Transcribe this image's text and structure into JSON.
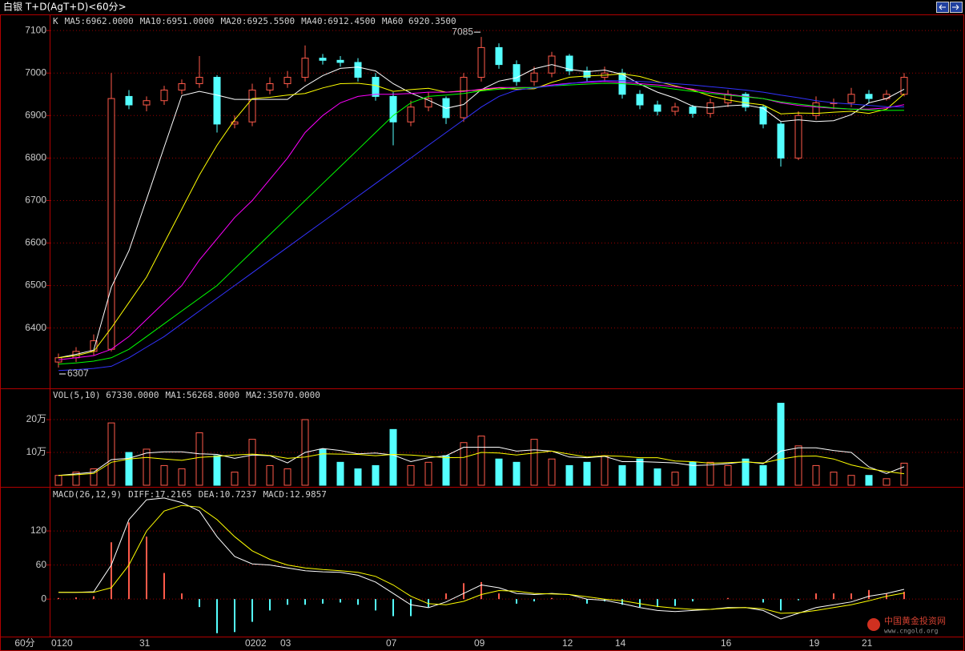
{
  "header": {
    "title": "白银 T+D(AgT+D)<60分>",
    "period": "60分"
  },
  "chart_data": [
    {
      "type": "candlestick",
      "label": "K",
      "up_color": "#ff5a4a",
      "down_color": "#54ffff",
      "open": [
        6320,
        6330,
        6345,
        6350,
        6945,
        6925,
        6935,
        6960,
        6975,
        6990,
        6880,
        6885,
        6960,
        6975,
        6990,
        7035,
        7030,
        7025,
        6990,
        6945,
        6885,
        6920,
        6940,
        6895,
        6990,
        7060,
        7020,
        6980,
        7000,
        7040,
        7005,
        6990,
        7000,
        6950,
        6925,
        6910,
        6920,
        6905,
        6930,
        6950,
        6920,
        6880,
        6800,
        6900,
        6930,
        6930,
        6950,
        6940,
        6950
      ],
      "high": [
        6340,
        6355,
        6385,
        7000,
        6960,
        6945,
        6970,
        6985,
        7040,
        6995,
        6900,
        6975,
        6990,
        7005,
        7065,
        7045,
        7040,
        7035,
        7000,
        6955,
        6935,
        6955,
        6945,
        7000,
        7085,
        7070,
        7030,
        7015,
        7050,
        7045,
        7015,
        7015,
        7010,
        6960,
        6935,
        6930,
        6925,
        6940,
        6960,
        6955,
        6925,
        6885,
        6910,
        6945,
        6940,
        6965,
        6960,
        6960,
        7000
      ],
      "low": [
        6307,
        6320,
        6335,
        6345,
        6915,
        6910,
        6925,
        6950,
        6965,
        6860,
        6870,
        6875,
        6950,
        6965,
        6980,
        7020,
        7015,
        6980,
        6935,
        6830,
        6875,
        6910,
        6880,
        6885,
        6980,
        7010,
        6970,
        6970,
        6990,
        6995,
        6980,
        6980,
        6940,
        6915,
        6900,
        6900,
        6895,
        6895,
        6920,
        6910,
        6870,
        6780,
        6795,
        6890,
        6915,
        6920,
        6930,
        6935,
        6945
      ],
      "close": [
        6330,
        6345,
        6370,
        6940,
        6925,
        6935,
        6960,
        6975,
        6990,
        6880,
        6885,
        6960,
        6975,
        6990,
        7035,
        7030,
        7025,
        6990,
        6945,
        6885,
        6920,
        6940,
        6895,
        6990,
        7060,
        7020,
        6980,
        7000,
        7040,
        7005,
        6990,
        7000,
        6950,
        6925,
        6910,
        6920,
        6905,
        6930,
        6950,
        6920,
        6880,
        6800,
        6900,
        6930,
        6930,
        6950,
        6940,
        6950,
        6990
      ],
      "series": [
        {
          "name": "MA5:6962.0000",
          "color": "#ffffff",
          "values": [
            6330,
            6338,
            6348,
            6496,
            6582,
            6703,
            6826,
            6947,
            6957,
            6948,
            6938,
            6938,
            6938,
            6938,
            6969,
            6994,
            7011,
            7014,
            7005,
            6975,
            6953,
            6936,
            6917,
            6926,
            6961,
            6981,
            6989,
            7010,
            7020,
            7009,
            7003,
            7007,
            6997,
            6974,
            6955,
            6941,
            6922,
            6918,
            6923,
            6925,
            6917,
            6886,
            6890,
            6886,
            6888,
            6902,
            6930,
            6940,
            6962
          ]
        },
        {
          "name": "MA10:6951.0000",
          "color": "#ffff00",
          "values": [
            6330,
            6335,
            6345,
            6400,
            6460,
            6520,
            6600,
            6680,
            6760,
            6830,
            6890,
            6940,
            6943,
            6948,
            6952,
            6965,
            6975,
            6976,
            6971,
            6957,
            6961,
            6964,
            6955,
            6958,
            6960,
            6965,
            6962,
            6963,
            6978,
            6990,
            6993,
            6995,
            6998,
            6992,
            6980,
            6970,
            6960,
            6946,
            6937,
            6930,
            6925,
            6904,
            6906,
            6905,
            6908,
            6910,
            6905,
            6915,
            6951
          ]
        },
        {
          "name": "MA20:6925.5500",
          "color": "#ff00ff",
          "values": [
            6325,
            6330,
            6335,
            6350,
            6380,
            6420,
            6460,
            6500,
            6560,
            6610,
            6660,
            6700,
            6750,
            6800,
            6860,
            6900,
            6930,
            6945,
            6950,
            6950,
            6952,
            6955,
            6955,
            6957,
            6962,
            6966,
            6966,
            6966,
            6972,
            6976,
            6978,
            6980,
            6978,
            6975,
            6972,
            6968,
            6962,
            6955,
            6950,
            6945,
            6940,
            6930,
            6924,
            6920,
            6917,
            6915,
            6915,
            6918,
            6925.55
          ]
        },
        {
          "name": "MA40:6912.4500",
          "color": "#00ff00",
          "values": [
            6315,
            6318,
            6322,
            6330,
            6350,
            6380,
            6410,
            6440,
            6470,
            6500,
            6540,
            6580,
            6620,
            6660,
            6700,
            6740,
            6780,
            6820,
            6860,
            6900,
            6930,
            6945,
            6948,
            6952,
            6958,
            6962,
            6965,
            6966,
            6970,
            6972,
            6974,
            6976,
            6975,
            6972,
            6968,
            6962,
            6957,
            6952,
            6948,
            6944,
            6940,
            6932,
            6927,
            6922,
            6918,
            6915,
            6913,
            6912,
            6912.45
          ]
        },
        {
          "name": "MA60 6920.3500",
          "color": "#3333ff",
          "values": [
            6300,
            6302,
            6305,
            6310,
            6330,
            6355,
            6380,
            6410,
            6440,
            6470,
            6500,
            6530,
            6560,
            6590,
            6620,
            6650,
            6680,
            6710,
            6740,
            6770,
            6800,
            6830,
            6860,
            6890,
            6920,
            6945,
            6960,
            6965,
            6970,
            6975,
            6980,
            6982,
            6982,
            6980,
            6978,
            6975,
            6972,
            6968,
            6964,
            6960,
            6955,
            6948,
            6942,
            6935,
            6930,
            6927,
            6924,
            6921,
            6920.35
          ]
        }
      ],
      "annotations": [
        {
          "value": 7085,
          "at": "high"
        },
        {
          "value": 6307,
          "at": "low"
        }
      ],
      "ylim": [
        6258,
        7138
      ],
      "yticks": [
        6400,
        6500,
        6600,
        6700,
        6800,
        6900,
        7000,
        7100
      ],
      "grid": true
    },
    {
      "type": "bar",
      "label": "VOL(5,10) 67330.0000",
      "values": [
        30000,
        40000,
        50000,
        190000,
        100000,
        110000,
        60000,
        50000,
        160000,
        90000,
        40000,
        140000,
        60000,
        50000,
        200000,
        110000,
        70000,
        50000,
        60000,
        170000,
        60000,
        70000,
        90000,
        130000,
        150000,
        80000,
        70000,
        140000,
        80000,
        60000,
        70000,
        90000,
        60000,
        80000,
        50000,
        40000,
        70000,
        70000,
        60000,
        80000,
        60000,
        250000,
        120000,
        60000,
        40000,
        30000,
        30000,
        20000,
        67330
      ],
      "series": [
        {
          "name": "MA1:56268.8000",
          "color": "#ffffff",
          "values": [
            30000,
            35000,
            40000,
            78000,
            82000,
            98000,
            102000,
            102000,
            96000,
            94000,
            82000,
            92000,
            90000,
            68000,
            100000,
            112000,
            106000,
            96000,
            98000,
            92000,
            72000,
            84000,
            90000,
            116000,
            116000,
            116000,
            104000,
            108000,
            104000,
            86000,
            84000,
            88000,
            72000,
            72000,
            70000,
            68000,
            60000,
            62000,
            66000,
            72000,
            66000,
            104000,
            114000,
            114000,
            106000,
            100000,
            56000,
            36000,
            56268.8
          ]
        },
        {
          "name": "MA2:35070.0000",
          "color": "#ffff00",
          "values": [
            30000,
            32000,
            36000,
            70000,
            80000,
            85000,
            80000,
            76000,
            85000,
            88000,
            92000,
            95000,
            91000,
            82000,
            86000,
            96000,
            95000,
            94000,
            90000,
            94000,
            92000,
            88000,
            84000,
            85000,
            100000,
            98000,
            92000,
            98000,
            104000,
            95000,
            86000,
            90000,
            88000,
            84000,
            84000,
            74000,
            72000,
            67000,
            69000,
            71000,
            68000,
            80000,
            88000,
            89000,
            80000,
            62000,
            50000,
            42000,
            35070
          ]
        }
      ],
      "ylim": [
        0,
        288000
      ],
      "yticks": [
        {
          "value": 100000,
          "label": "10万"
        },
        {
          "value": 200000,
          "label": "20万"
        }
      ],
      "grid": true
    },
    {
      "type": "macd",
      "label": "MACD(26,12,9)",
      "bar_name": "MACD:12.9857",
      "pos_color": "#ff5a4a",
      "neg_color": "#54ffff",
      "categories": [
        "0120",
        null,
        null,
        null,
        null,
        "31",
        null,
        null,
        null,
        null,
        null,
        "0202",
        null,
        "03",
        null,
        null,
        null,
        null,
        null,
        "07",
        null,
        null,
        null,
        null,
        "09",
        null,
        null,
        null,
        null,
        "12",
        null,
        null,
        "14",
        null,
        null,
        null,
        null,
        null,
        "16",
        null,
        null,
        null,
        null,
        "19",
        null,
        null,
        "21",
        null,
        null
      ],
      "values": [
        2,
        3,
        5,
        100,
        135,
        110,
        46,
        10,
        -14,
        -60,
        -58,
        -40,
        -20,
        -10,
        -10,
        -8,
        -6,
        -10,
        -20,
        -30,
        -30,
        -14,
        10,
        28,
        30,
        10,
        -8,
        -4,
        2,
        0,
        -8,
        -4,
        -10,
        -14,
        -14,
        -12,
        -4,
        0,
        2,
        0,
        -6,
        -20,
        -2,
        10,
        10,
        10,
        16,
        10,
        12.9857
      ],
      "series": [
        {
          "name": "DIFF:17.2165",
          "color": "#ffffff",
          "values": [
            12,
            12,
            13,
            60,
            140,
            175,
            178,
            170,
            155,
            110,
            75,
            62,
            60,
            55,
            50,
            48,
            47,
            42,
            30,
            10,
            -10,
            -15,
            -5,
            10,
            25,
            20,
            10,
            8,
            10,
            8,
            0,
            -2,
            -8,
            -15,
            -20,
            -22,
            -20,
            -18,
            -15,
            -15,
            -20,
            -35,
            -25,
            -15,
            -10,
            -5,
            5,
            10,
            17.2165
          ]
        },
        {
          "name": "DEA:10.7237",
          "color": "#ffff00",
          "values": [
            12,
            12,
            12,
            20,
            60,
            120,
            155,
            165,
            162,
            140,
            110,
            85,
            70,
            60,
            55,
            52,
            50,
            47,
            40,
            25,
            5,
            -8,
            -10,
            -4,
            8,
            15,
            14,
            10,
            9,
            8,
            4,
            0,
            -3,
            -8,
            -13,
            -16,
            -18,
            -18,
            -16,
            -15,
            -17,
            -25,
            -24,
            -20,
            -15,
            -10,
            -3,
            5,
            10.7237
          ]
        }
      ],
      "ylim": [
        -66,
        192
      ],
      "yticks": [
        0,
        60,
        120
      ],
      "grid": true
    }
  ],
  "watermark": {
    "name": "中国黄金投资网",
    "url": "www.cngold.org"
  }
}
